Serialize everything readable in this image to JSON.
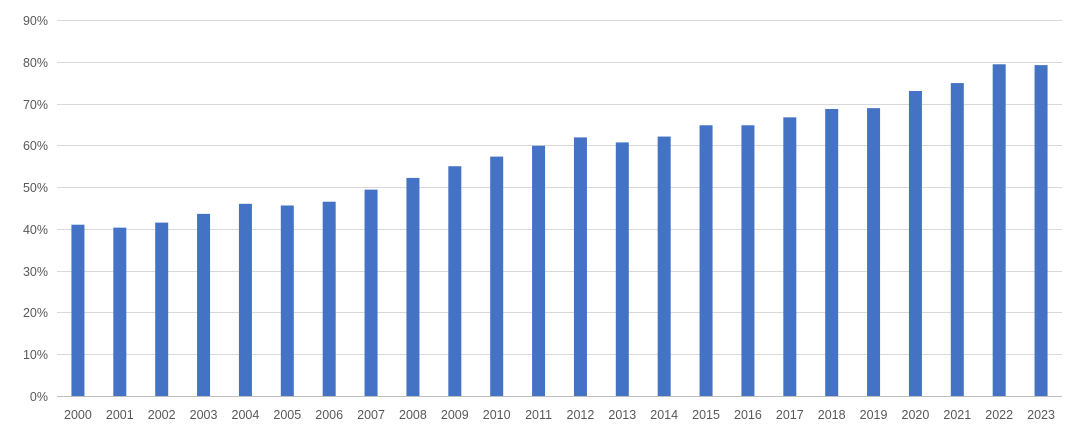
{
  "chart_data": {
    "type": "bar",
    "title": "",
    "xlabel": "",
    "ylabel": "",
    "ylim": [
      0,
      90
    ],
    "y_ticks": [
      "0%",
      "10%",
      "20%",
      "30%",
      "40%",
      "50%",
      "60%",
      "70%",
      "80%",
      "90%"
    ],
    "y_unit": "%",
    "grid": true,
    "legend": "none",
    "bar_color": "#4472C4",
    "categories": [
      "2000",
      "2001",
      "2002",
      "2003",
      "2004",
      "2005",
      "2006",
      "2007",
      "2008",
      "2009",
      "2010",
      "2011",
      "2012",
      "2013",
      "2014",
      "2015",
      "2016",
      "2017",
      "2018",
      "2019",
      "2020",
      "2021",
      "2022",
      "2023"
    ],
    "values": [
      41.0,
      40.3,
      41.5,
      43.6,
      46.0,
      45.6,
      46.5,
      49.4,
      52.2,
      55.0,
      57.3,
      59.9,
      61.9,
      60.7,
      62.1,
      64.8,
      64.8,
      66.7,
      68.7,
      68.9,
      73.0,
      74.9,
      79.4,
      79.2
    ]
  }
}
